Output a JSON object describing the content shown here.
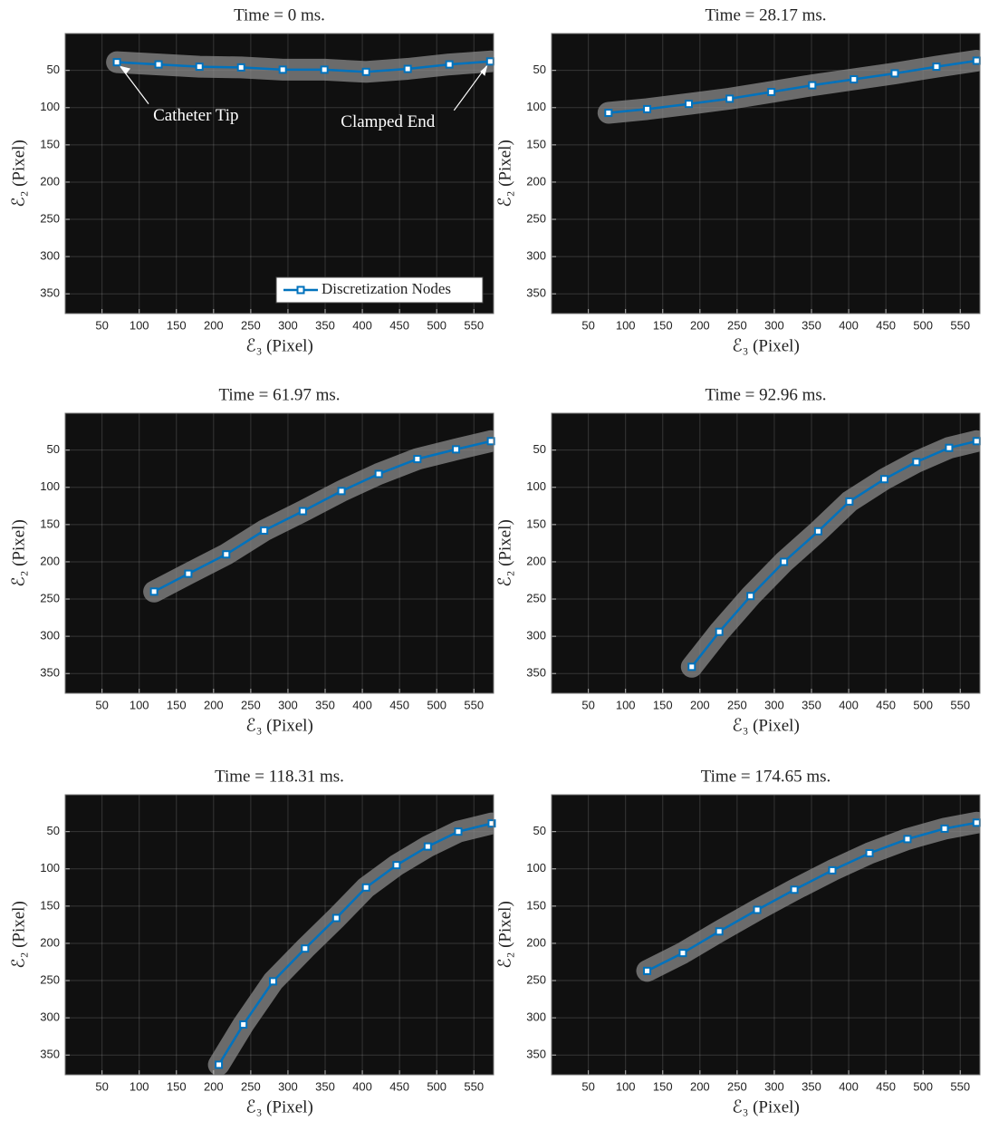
{
  "chart_data": [
    {
      "type": "line",
      "title": "Time = 0 ms.",
      "xlabel": "ℰ₃ (Pixel)",
      "ylabel": "ℰ₂ (Pixel)",
      "x": [
        70,
        126,
        181,
        237,
        293,
        349,
        405,
        461,
        517,
        572
      ],
      "series": [
        {
          "name": "Discretization Nodes",
          "color": "#0072bd",
          "values": [
            39,
            42,
            45,
            46,
            49,
            49,
            52,
            48,
            42,
            38
          ]
        }
      ],
      "legend": "lower right",
      "annotations": [
        "Catheter Tip",
        "Clamped End"
      ],
      "xlim": [
        0.5,
        576.5
      ],
      "ylim": [
        0.5,
        376.5
      ],
      "y_reversed": true,
      "xticks": [
        50,
        100,
        150,
        200,
        250,
        300,
        350,
        400,
        450,
        500,
        550
      ],
      "yticks": [
        50,
        100,
        150,
        200,
        250,
        300,
        350
      ],
      "grid": true
    },
    {
      "type": "line",
      "title": "Time = 28.17 ms.",
      "xlabel": "ℰ₃ (Pixel)",
      "ylabel": "ℰ₂ (Pixel)",
      "x": [
        77,
        129,
        185,
        240,
        296,
        351,
        407,
        462,
        518,
        572
      ],
      "series": [
        {
          "color": "#0072bd",
          "values": [
            107,
            102,
            95,
            88,
            79,
            70,
            62,
            54,
            45,
            37
          ]
        }
      ],
      "xlim": [
        0.5,
        576.5
      ],
      "ylim": [
        0.5,
        376.5
      ],
      "y_reversed": true,
      "xticks": [
        50,
        100,
        150,
        200,
        250,
        300,
        350,
        400,
        450,
        500,
        550
      ],
      "yticks": [
        50,
        100,
        150,
        200,
        250,
        300,
        350
      ],
      "grid": true
    },
    {
      "type": "line",
      "title": "Time = 61.97 ms.",
      "xlabel": "ℰ₃ (Pixel)",
      "ylabel": "ℰ₂ (Pixel)",
      "x": [
        120,
        166,
        217,
        268,
        320,
        372,
        422,
        474,
        526,
        573
      ],
      "series": [
        {
          "color": "#0072bd",
          "values": [
            240,
            216,
            190,
            158,
            132,
            105,
            82,
            62,
            49,
            38
          ]
        }
      ],
      "xlim": [
        0.5,
        576.5
      ],
      "ylim": [
        0.5,
        376.5
      ],
      "y_reversed": true,
      "xticks": [
        50,
        100,
        150,
        200,
        250,
        300,
        350,
        400,
        450,
        500,
        550
      ],
      "yticks": [
        50,
        100,
        150,
        200,
        250,
        300,
        350
      ],
      "grid": true
    },
    {
      "type": "line",
      "title": "Time = 92.96 ms.",
      "xlabel": "ℰ₃ (Pixel)",
      "ylabel": "ℰ₂ (Pixel)",
      "x": [
        189,
        226,
        268,
        313,
        359,
        401,
        448,
        491,
        535,
        572
      ],
      "series": [
        {
          "color": "#0072bd",
          "values": [
            341,
            294,
            246,
            200,
            159,
            119,
            89,
            66,
            47,
            38
          ]
        }
      ],
      "xlim": [
        0.5,
        576.5
      ],
      "ylim": [
        0.5,
        376.5
      ],
      "y_reversed": true,
      "xticks": [
        50,
        100,
        150,
        200,
        250,
        300,
        350,
        400,
        450,
        500,
        550
      ],
      "yticks": [
        50,
        100,
        150,
        200,
        250,
        300,
        350
      ],
      "grid": true
    },
    {
      "type": "line",
      "title": "Time = 118.31 ms.",
      "xlabel": "ℰ₃ (Pixel)",
      "ylabel": "ℰ₂ (Pixel)",
      "x": [
        207,
        240,
        280,
        323,
        365,
        405,
        446,
        488,
        529,
        574
      ],
      "series": [
        {
          "color": "#0072bd",
          "values": [
            363,
            309,
            251,
            207,
            166,
            125,
            95,
            70,
            50,
            39
          ]
        }
      ],
      "xlim": [
        0.5,
        576.5
      ],
      "ylim": [
        0.5,
        376.5
      ],
      "y_reversed": true,
      "xticks": [
        50,
        100,
        150,
        200,
        250,
        300,
        350,
        400,
        450,
        500,
        550
      ],
      "yticks": [
        50,
        100,
        150,
        200,
        250,
        300,
        350
      ],
      "grid": true
    },
    {
      "type": "line",
      "title": "Time = 174.65 ms.",
      "xlabel": "ℰ₃ (Pixel)",
      "ylabel": "ℰ₂ (Pixel)",
      "x": [
        129,
        177,
        226,
        277,
        327,
        378,
        428,
        479,
        529,
        572
      ],
      "series": [
        {
          "color": "#0072bd",
          "values": [
            237,
            213,
            184,
            155,
            128,
            102,
            79,
            60,
            46,
            38
          ]
        }
      ],
      "xlim": [
        0.5,
        576.5
      ],
      "ylim": [
        0.5,
        376.5
      ],
      "y_reversed": true,
      "xticks": [
        50,
        100,
        150,
        200,
        250,
        300,
        350,
        400,
        450,
        500,
        550
      ],
      "yticks": [
        50,
        100,
        150,
        200,
        250,
        300,
        350
      ],
      "grid": true
    }
  ]
}
